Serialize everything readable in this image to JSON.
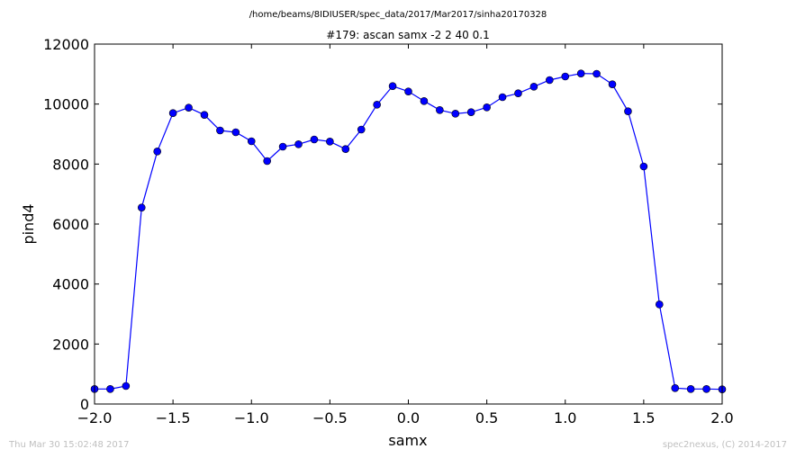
{
  "chart_data": {
    "type": "line",
    "suptitle": "/home/beams/8IDIUSER/spec_data/2017/Mar2017/sinha20170328",
    "title": "#179: ascan  samx -2 2  40 0.1",
    "xlabel": "samx",
    "ylabel": "pind4",
    "xlim": [
      -2.0,
      2.0
    ],
    "ylim": [
      0,
      12000
    ],
    "xticks": [
      "−2.0",
      "−1.5",
      "−1.0",
      "−0.5",
      "0.0",
      "0.5",
      "1.0",
      "1.5",
      "2.0"
    ],
    "xtick_values": [
      -2.0,
      -1.5,
      -1.0,
      -0.5,
      0.0,
      0.5,
      1.0,
      1.5,
      2.0
    ],
    "yticks": [
      "0",
      "2000",
      "4000",
      "6000",
      "8000",
      "10000",
      "12000"
    ],
    "ytick_values": [
      0,
      2000,
      4000,
      6000,
      8000,
      10000,
      12000
    ],
    "grid": false,
    "legend": "none",
    "series": [
      {
        "color": "#0000ff",
        "marker": "circle",
        "x": [
          -2.0,
          -1.9,
          -1.8,
          -1.7,
          -1.6,
          -1.5,
          -1.4,
          -1.3,
          -1.2,
          -1.1,
          -1.0,
          -0.9,
          -0.8,
          -0.7,
          -0.6,
          -0.5,
          -0.4,
          -0.3,
          -0.2,
          -0.1,
          0.0,
          0.1,
          0.2,
          0.3,
          0.4,
          0.5,
          0.6,
          0.7,
          0.8,
          0.9,
          1.0,
          1.1,
          1.2,
          1.3,
          1.4,
          1.5,
          1.6,
          1.7,
          1.8,
          1.9,
          2.0
        ],
        "y": [
          500,
          500,
          600,
          6550,
          8420,
          9700,
          9880,
          9640,
          9120,
          9060,
          8760,
          8100,
          8580,
          8660,
          8820,
          8750,
          8500,
          9150,
          9980,
          10600,
          10420,
          10100,
          9800,
          9680,
          9730,
          9890,
          10230,
          10360,
          10580,
          10800,
          10920,
          11020,
          11010,
          10660,
          9760,
          7920,
          3320,
          530,
          500,
          500,
          490
        ]
      }
    ]
  },
  "footer": {
    "left": "Thu Mar 30 15:02:48 2017",
    "right": "spec2nexus, (C) 2014-2017"
  }
}
